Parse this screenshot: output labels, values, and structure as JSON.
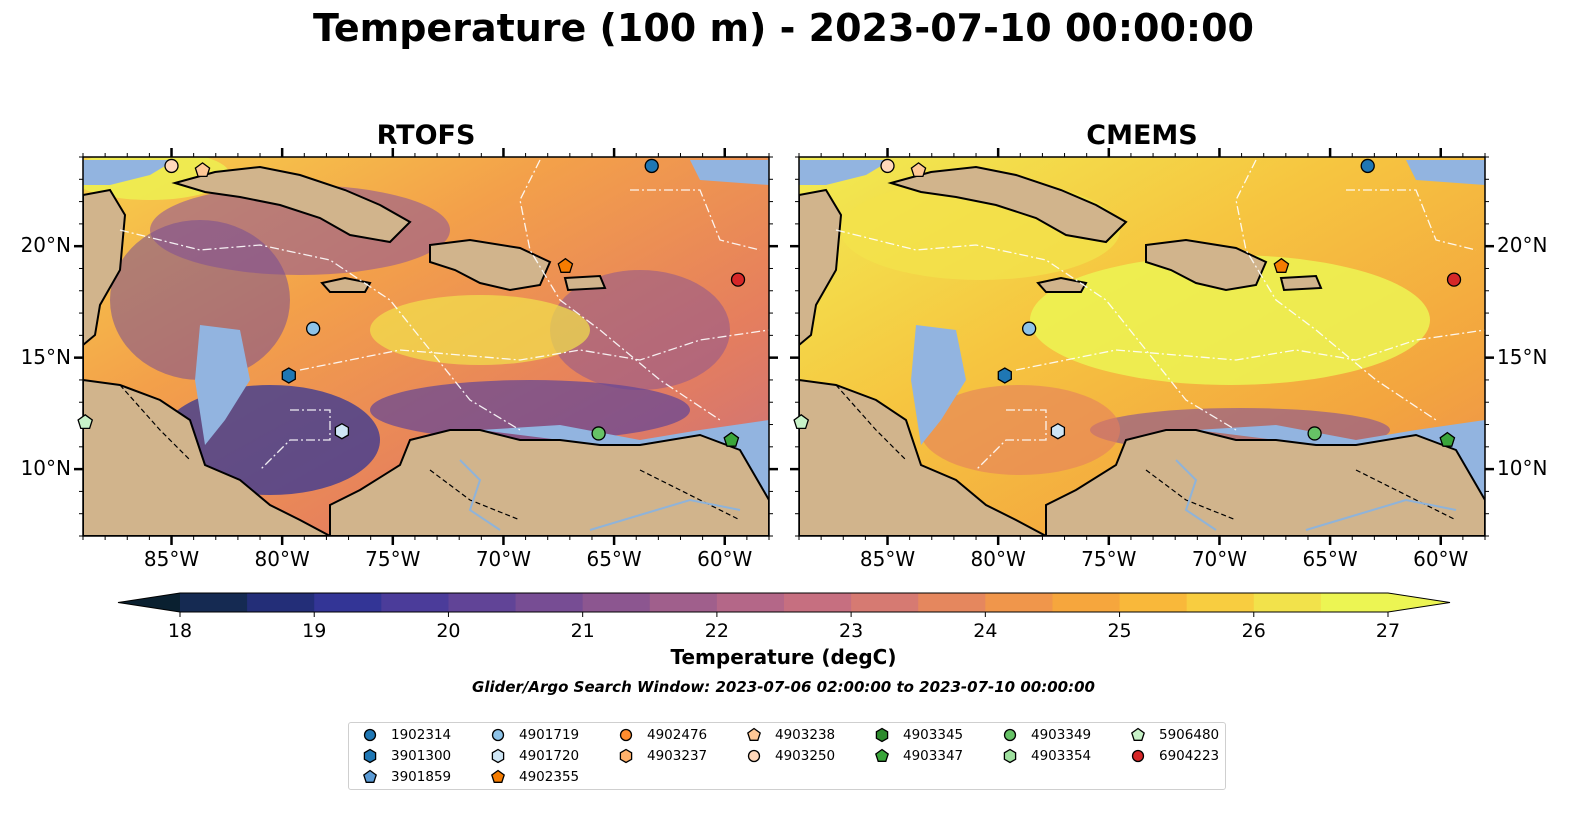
{
  "title": "Temperature (100 m) - 2023-07-10 00:00:00",
  "panels": [
    {
      "title": "RTOFS"
    },
    {
      "title": "CMEMS"
    }
  ],
  "axes": {
    "lon_ticks": [
      "85°W",
      "80°W",
      "75°W",
      "70°W",
      "65°W",
      "60°W"
    ],
    "lat_ticks": [
      "20°N",
      "15°N",
      "10°N"
    ],
    "lon_range": [
      -89,
      -58
    ],
    "lat_range": [
      7,
      24
    ]
  },
  "colorbar": {
    "label": "Temperature (degC)",
    "ticks": [
      "18",
      "19",
      "20",
      "21",
      "22",
      "23",
      "24",
      "25",
      "26",
      "27"
    ],
    "range": [
      18,
      27
    ],
    "extend": "both",
    "colors": [
      "#0a2030",
      "#152a52",
      "#232e78",
      "#333596",
      "#4b3c9a",
      "#614497",
      "#774d94",
      "#8c5690",
      "#a05f8c",
      "#b46788",
      "#c66f80",
      "#d67a72",
      "#e5875e",
      "#f0964b",
      "#f6a63d",
      "#f9b83a",
      "#f8cd40",
      "#f2e24b",
      "#ecf553"
    ]
  },
  "search_window": "Glider/Argo Search Window: 2023-07-06 02:00:00 to 2023-07-10 00:00:00",
  "legend": {
    "items": [
      {
        "label": "1902314",
        "color": "#1f77b4",
        "marker": "circle"
      },
      {
        "label": "3901300",
        "color": "#1f77b4",
        "marker": "hexagon"
      },
      {
        "label": "3901859",
        "color": "#5b9bd5",
        "marker": "pentagon"
      },
      {
        "label": "4901719",
        "color": "#8ec3e8",
        "marker": "circle"
      },
      {
        "label": "4901720",
        "color": "#cfe6f5",
        "marker": "hexagon"
      },
      {
        "label": "4902355",
        "color": "#f57c00",
        "marker": "pentagon"
      },
      {
        "label": "4902476",
        "color": "#ff8c2e",
        "marker": "circle"
      },
      {
        "label": "4903237",
        "color": "#ffb16b",
        "marker": "hexagon"
      },
      {
        "label": "4903238",
        "color": "#ffc896",
        "marker": "pentagon"
      },
      {
        "label": "4903250",
        "color": "#ffd8bb",
        "marker": "circle"
      },
      {
        "label": "4903345",
        "color": "#2e8b2e",
        "marker": "hexagon"
      },
      {
        "label": "4903347",
        "color": "#3aa53a",
        "marker": "pentagon"
      },
      {
        "label": "4903349",
        "color": "#66c266",
        "marker": "circle"
      },
      {
        "label": "4903354",
        "color": "#9fe09f",
        "marker": "hexagon"
      },
      {
        "label": "5906480",
        "color": "#c8f2c8",
        "marker": "pentagon"
      },
      {
        "label": "6904223",
        "color": "#d62728",
        "marker": "circle"
      }
    ]
  },
  "floats": [
    {
      "id": "4903250",
      "lon": -85.0,
      "lat": 23.6
    },
    {
      "id": "4903238",
      "lon": -83.6,
      "lat": 23.4
    },
    {
      "id": "1902314",
      "lon": -63.3,
      "lat": 23.6
    },
    {
      "id": "4902355",
      "lon": -67.2,
      "lat": 19.1
    },
    {
      "id": "6904223",
      "lon": -59.4,
      "lat": 18.5
    },
    {
      "id": "4901719",
      "lon": -78.6,
      "lat": 16.3
    },
    {
      "id": "3901300",
      "lon": -79.7,
      "lat": 14.2
    },
    {
      "id": "4901720",
      "lon": -77.3,
      "lat": 11.7
    },
    {
      "id": "4903349",
      "lon": -65.7,
      "lat": 11.6
    },
    {
      "id": "4903347",
      "lon": -59.7,
      "lat": 11.3
    },
    {
      "id": "5906480",
      "lon": -88.9,
      "lat": 12.1
    }
  ]
}
